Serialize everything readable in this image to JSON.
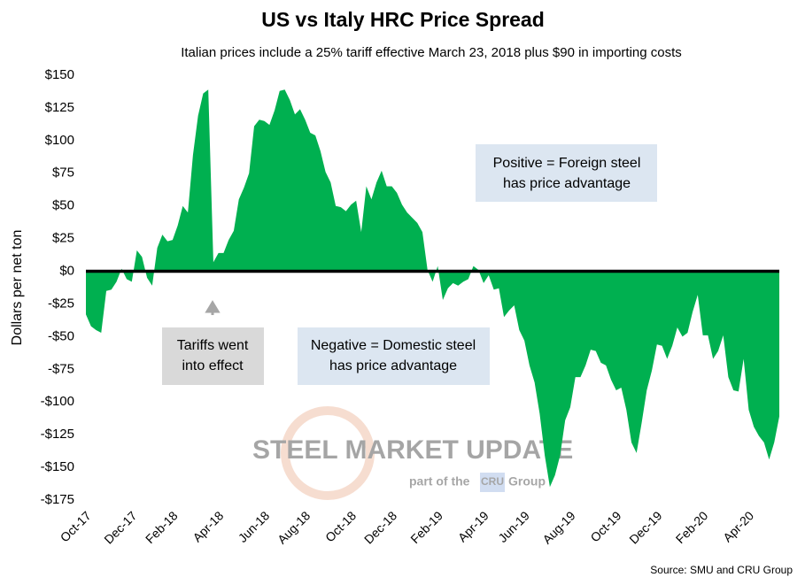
{
  "chart_data": {
    "type": "area",
    "title": "US vs Italy HRC Price Spread",
    "subtitle": "Italian prices include a 25% tariff effective March 23, 2018 plus $90 in importing costs",
    "ylabel": "Dollars per net ton",
    "source": "Source: SMU and CRU Group",
    "color": "#00b050",
    "zero_line": true,
    "watermark": [
      "STEEL MARKET UPDATE",
      "part of the",
      "CRU",
      "Group"
    ],
    "annotations": [
      {
        "lines": [
          "Positive = Foreign steel",
          "has price advantage"
        ]
      },
      {
        "lines": [
          "Tariffs went",
          "into effect"
        ]
      },
      {
        "lines": [
          "Negative = Domestic steel",
          "has price advantage"
        ]
      }
    ],
    "categories": [
      "Oct-17",
      null,
      null,
      null,
      null,
      null,
      null,
      null,
      null,
      "Dec-17",
      null,
      null,
      null,
      null,
      null,
      null,
      null,
      "Feb-18",
      null,
      null,
      null,
      null,
      null,
      null,
      null,
      null,
      "Apr-18",
      null,
      null,
      null,
      null,
      null,
      null,
      null,
      null,
      "Jun-18",
      null,
      null,
      null,
      null,
      null,
      null,
      null,
      "Aug-18",
      null,
      null,
      null,
      null,
      null,
      null,
      null,
      null,
      "Oct-18",
      null,
      null,
      null,
      null,
      null,
      null,
      null,
      "Dec-18",
      null,
      null,
      null,
      null,
      null,
      null,
      null,
      null,
      "Feb-19",
      null,
      null,
      null,
      null,
      null,
      null,
      null,
      null,
      "Apr-19",
      null,
      null,
      null,
      null,
      null,
      null,
      null,
      "Jun-19",
      null,
      null,
      null,
      null,
      null,
      null,
      null,
      null,
      "Aug-19",
      null,
      null,
      null,
      null,
      null,
      null,
      null,
      null,
      "Oct-19",
      null,
      null,
      null,
      null,
      null,
      null,
      null,
      "Dec-19",
      null,
      null,
      null,
      null,
      null,
      null,
      null,
      null,
      "Feb-20",
      null,
      null,
      null,
      null,
      null,
      null,
      null,
      null,
      "Apr-20",
      null,
      null,
      null,
      null,
      null,
      null
    ],
    "values": [
      -33,
      -42,
      -45,
      -47,
      -15,
      -14,
      -8,
      2,
      -6,
      -8,
      16,
      11,
      -5,
      -11,
      18,
      28,
      23,
      24,
      35,
      50,
      45,
      89,
      119,
      136,
      139,
      7,
      14,
      14,
      24,
      31,
      55,
      64,
      75,
      111,
      116,
      115,
      112,
      123,
      138,
      139,
      131,
      120,
      124,
      116,
      106,
      104,
      92,
      76,
      68,
      50,
      49,
      46,
      51,
      54,
      30,
      65,
      55,
      68,
      77,
      65,
      65,
      60,
      51,
      45,
      41,
      37,
      30,
      1,
      -8,
      4,
      -22,
      -13,
      -9,
      -11,
      -8,
      -6,
      4,
      1,
      -9,
      -3,
      -14,
      -13,
      -35,
      -30,
      -26,
      -45,
      -53,
      -72,
      -85,
      -109,
      -141,
      -165,
      -156,
      -141,
      -114,
      -104,
      -81,
      -81,
      -72,
      -60,
      -61,
      -70,
      -72,
      -83,
      -91,
      -89,
      -106,
      -131,
      -139,
      -116,
      -91,
      -76,
      -56,
      -57,
      -67,
      -57,
      -43,
      -50,
      -47,
      -31,
      -18,
      -49,
      -49,
      -67,
      -61,
      -49,
      -81,
      -91,
      -92,
      -67,
      -106,
      -119,
      -126,
      -131,
      -144,
      -131,
      -111
    ],
    "ylim": [
      -175,
      150
    ],
    "yticks": [
      {
        "value": -175,
        "label": "-$175"
      },
      {
        "value": -150,
        "label": "-$150"
      },
      {
        "value": -125,
        "label": "-$125"
      },
      {
        "value": -100,
        "label": "-$100"
      },
      {
        "value": -75,
        "label": "-$75"
      },
      {
        "value": -50,
        "label": "-$50"
      },
      {
        "value": -25,
        "label": "-$25"
      },
      {
        "value": 0,
        "label": "$0"
      },
      {
        "value": 25,
        "label": "$25"
      },
      {
        "value": 50,
        "label": "$50"
      },
      {
        "value": 75,
        "label": "$75"
      },
      {
        "value": 100,
        "label": "$100"
      },
      {
        "value": 125,
        "label": "$125"
      },
      {
        "value": 150,
        "label": "$150"
      }
    ]
  }
}
